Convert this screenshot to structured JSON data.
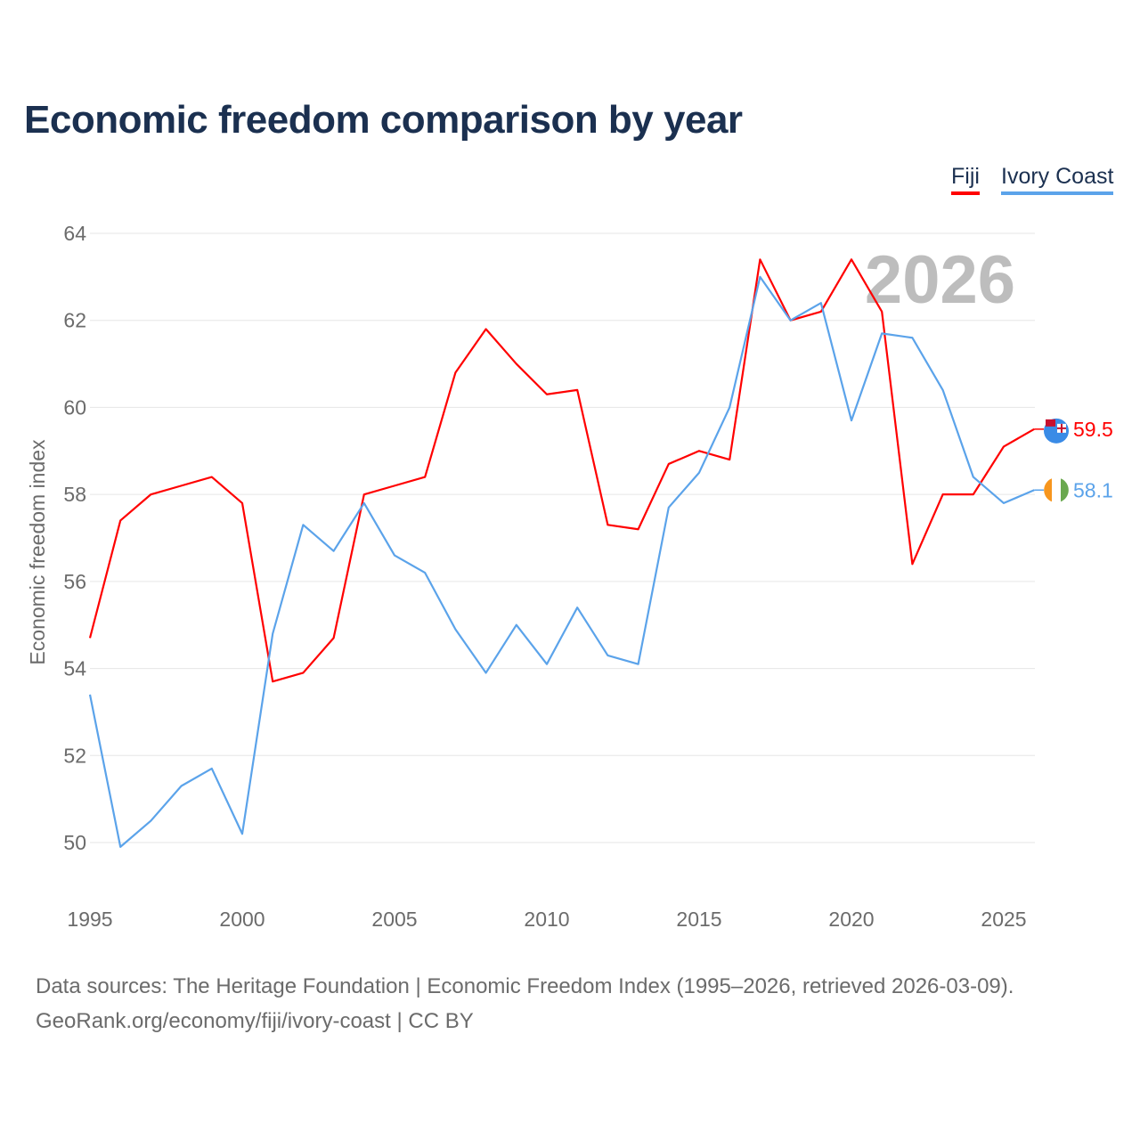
{
  "chart_data": {
    "type": "line",
    "title": "Economic freedom comparison by year",
    "xlabel": "",
    "ylabel": "Economic freedom index",
    "ylim": [
      50,
      64
    ],
    "yticks": [
      50,
      52,
      54,
      56,
      58,
      60,
      62,
      64
    ],
    "xticks": [
      1995,
      2000,
      2005,
      2010,
      2015,
      2020,
      2025
    ],
    "xlim": [
      1995,
      2026
    ],
    "grid": true,
    "legend_position": "top-right",
    "year_watermark": "2026",
    "x": [
      1995,
      1996,
      1997,
      1998,
      1999,
      2000,
      2001,
      2002,
      2003,
      2004,
      2005,
      2006,
      2007,
      2008,
      2009,
      2010,
      2011,
      2012,
      2013,
      2014,
      2015,
      2016,
      2017,
      2018,
      2019,
      2020,
      2021,
      2022,
      2023,
      2024,
      2025,
      2026
    ],
    "series": [
      {
        "name": "Fiji",
        "color": "#ff0000",
        "end_label": "59.5",
        "values": [
          54.7,
          57.4,
          58.0,
          58.2,
          58.4,
          57.8,
          53.7,
          53.9,
          54.7,
          58.0,
          58.2,
          58.4,
          60.8,
          61.8,
          61.0,
          60.3,
          60.4,
          57.3,
          57.2,
          58.7,
          59.0,
          58.8,
          63.4,
          62.0,
          62.2,
          63.4,
          62.2,
          56.4,
          58.0,
          58.0,
          59.1,
          59.5
        ]
      },
      {
        "name": "Ivory Coast",
        "color": "#5ba3ea",
        "end_label": "58.1",
        "values": [
          53.4,
          49.9,
          50.5,
          51.3,
          51.7,
          50.2,
          54.8,
          57.3,
          56.7,
          57.8,
          56.6,
          56.2,
          54.9,
          53.9,
          55.0,
          54.1,
          55.4,
          54.3,
          54.1,
          57.7,
          58.5,
          60.0,
          63.0,
          62.0,
          62.4,
          59.7,
          61.7,
          61.6,
          60.4,
          58.4,
          57.8,
          58.1
        ]
      }
    ]
  },
  "footer": {
    "line1": "Data sources: The Heritage Foundation | Economic Freedom Index (1995–2026, retrieved 2026-03-09).",
    "line2": "GeoRank.org/economy/fiji/ivory-coast | CC BY"
  }
}
